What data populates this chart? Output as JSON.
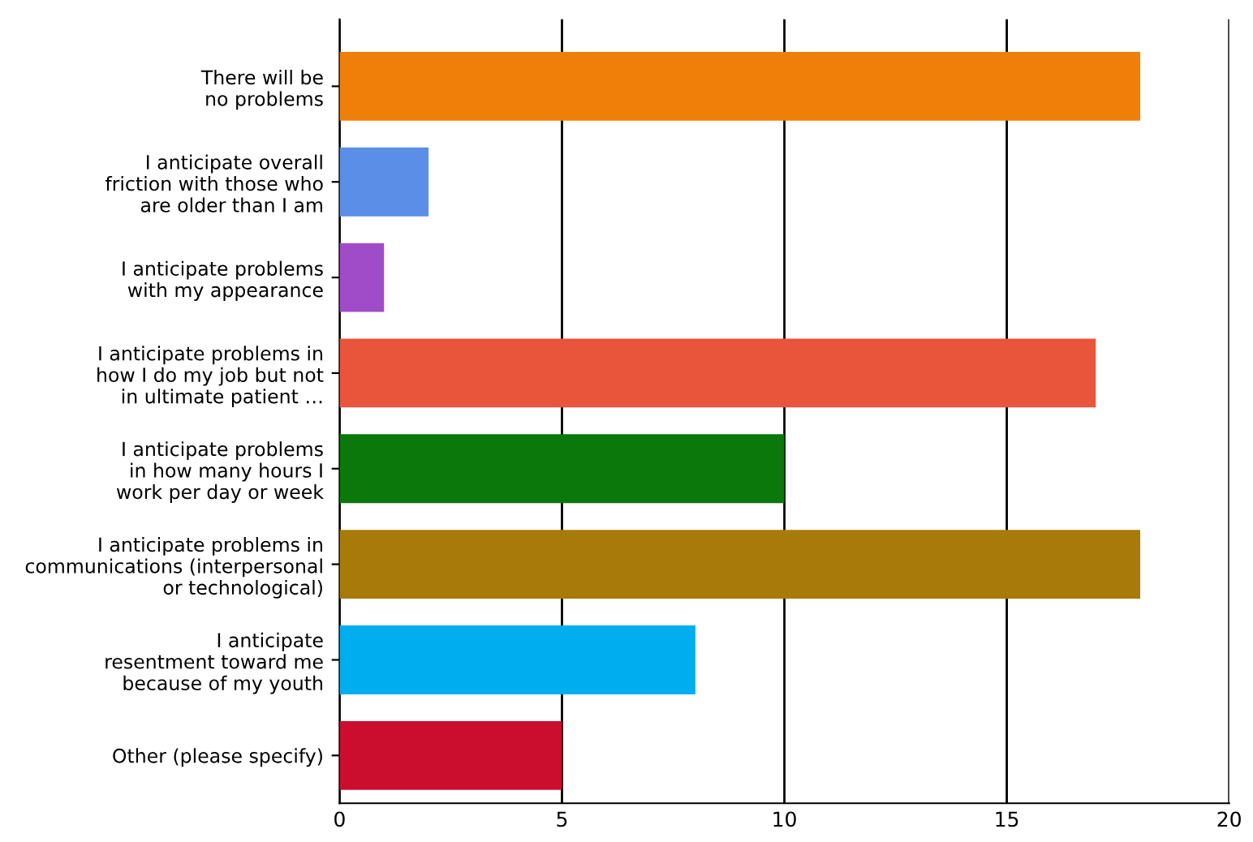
{
  "chart_data": {
    "type": "bar",
    "orientation": "horizontal",
    "categories": [
      "There will be\nno problems",
      "I anticipate overall\nfriction with those who\nare older than I am",
      "I anticipate problems\nwith my appearance",
      "I anticipate problems in\nhow I do my job but not\nin ultimate patient …",
      "I anticipate problems\nin how many hours I\nwork per day or week",
      "I anticipate problems in\ncommunications (interpersonal\nor technological)",
      "I anticipate\nresentment toward me\nbecause of my youth",
      "Other (please specify)"
    ],
    "values": [
      18,
      2,
      1,
      17,
      10,
      18,
      8,
      5
    ],
    "colors": [
      "#f07f09",
      "#5b8ee6",
      "#a04cc8",
      "#e8553a",
      "#0a780a",
      "#a87a0a",
      "#00aeef",
      "#cc0e2e"
    ],
    "xlim": [
      0,
      20
    ],
    "xticks": [
      0,
      5,
      10,
      15,
      20
    ],
    "grid": "x"
  }
}
